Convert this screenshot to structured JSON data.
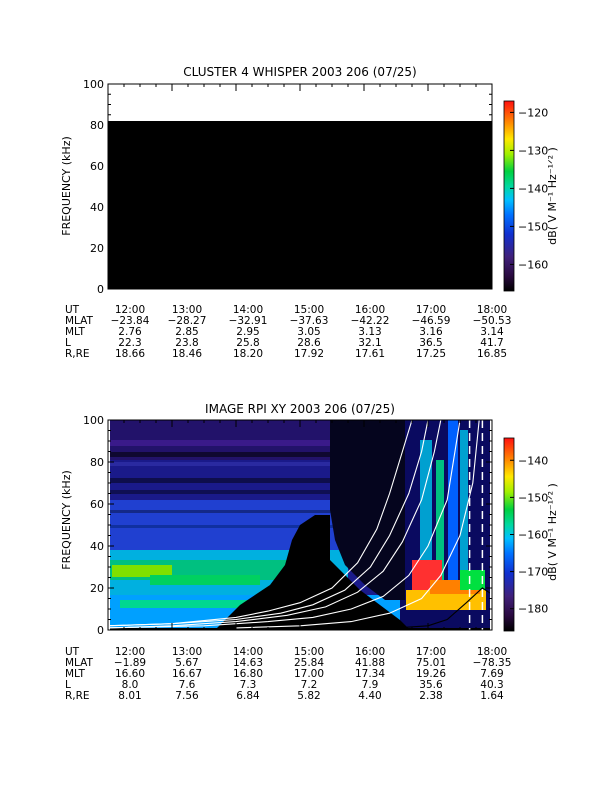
{
  "chart_data": [
    {
      "type": "heatmap",
      "title": "CLUSTER 4 WHISPER 2003 206 (07/25)",
      "ylabel": "FREQUENCY (kHz)",
      "ylim": [
        0,
        100
      ],
      "yticks": [
        "0",
        "20",
        "40",
        "60",
        "80",
        "100"
      ],
      "data_region": {
        "freq_max_khz": 80,
        "value": "background"
      },
      "colorbar": {
        "label": "dB( V M⁻¹ Hz⁻¹ᐟ² )",
        "range": [
          -167,
          -117
        ],
        "ticks": [
          "-120",
          "-130",
          "-140",
          "-150",
          "-160"
        ]
      },
      "ephemeris": {
        "labels": [
          "UT",
          "MLAT",
          "MLT",
          "L",
          "R,RE"
        ],
        "columns": [
          [
            "12:00",
            "-23.84",
            "2.76",
            "22.3",
            "18.66"
          ],
          [
            "13:00",
            "-28.27",
            "2.85",
            "23.8",
            "18.46"
          ],
          [
            "14:00",
            "-32.91",
            "2.95",
            "25.8",
            "18.20"
          ],
          [
            "15:00",
            "-37.63",
            "3.05",
            "28.6",
            "17.92"
          ],
          [
            "16:00",
            "-42.22",
            "3.13",
            "32.1",
            "17.61"
          ],
          [
            "17:00",
            "-46.59",
            "3.16",
            "36.5",
            "17.25"
          ],
          [
            "18:00",
            "-50.53",
            "3.14",
            "41.7",
            "16.85"
          ]
        ]
      }
    },
    {
      "type": "heatmap",
      "title": "IMAGE RPI XY 2003 206 (07/25)",
      "ylabel": "FREQUENCY (kHz)",
      "ylim": [
        0,
        100
      ],
      "yticks": [
        "0",
        "20",
        "40",
        "60",
        "80",
        "100"
      ],
      "colorbar": {
        "label": "dB( V M⁻¹ Hz⁻¹ᐟ² )",
        "range": [
          -186,
          -134
        ],
        "ticks": [
          "-140",
          "-150",
          "-160",
          "-170",
          "-180"
        ]
      },
      "ephemeris": {
        "labels": [
          "UT",
          "MLAT",
          "MLT",
          "L",
          "R,RE"
        ],
        "columns": [
          [
            "12:00",
            "-1.89",
            "16.60",
            "8.0",
            "8.01"
          ],
          [
            "13:00",
            "5.67",
            "16.67",
            "7.6",
            "7.56"
          ],
          [
            "14:00",
            "14.63",
            "16.80",
            "7.3",
            "6.84"
          ],
          [
            "15:00",
            "25.84",
            "17.00",
            "7.2",
            "5.82"
          ],
          [
            "16:00",
            "41.88",
            "17.34",
            "7.9",
            "4.40"
          ],
          [
            "17:00",
            "75.01",
            "19.26",
            "35.6",
            "2.38"
          ],
          [
            "18:00",
            "-78.35",
            "7.69",
            "40.3",
            "1.64"
          ]
        ]
      },
      "overlay_curves": [
        {
          "color": "#ffffff",
          "points": [
            [
              12.0,
              2
            ],
            [
              13.0,
              3
            ],
            [
              14.0,
              6
            ],
            [
              14.5,
              9
            ],
            [
              15.0,
              13
            ],
            [
              15.5,
              20
            ],
            [
              15.9,
              32
            ],
            [
              16.2,
              48
            ],
            [
              16.4,
              65
            ],
            [
              16.6,
              85
            ],
            [
              16.75,
              100
            ]
          ]
        },
        {
          "color": "#ffffff",
          "points": [
            [
              12.0,
              2
            ],
            [
              13.0,
              3
            ],
            [
              14.0,
              5
            ],
            [
              14.7,
              8
            ],
            [
              15.2,
              12
            ],
            [
              15.7,
              19
            ],
            [
              16.1,
              30
            ],
            [
              16.4,
              45
            ],
            [
              16.7,
              65
            ],
            [
              16.9,
              85
            ],
            [
              17.0,
              100
            ]
          ]
        },
        {
          "color": "#ffffff",
          "points": [
            [
              12.0,
              1
            ],
            [
              13.0,
              2
            ],
            [
              14.0,
              4
            ],
            [
              14.8,
              7
            ],
            [
              15.4,
              11
            ],
            [
              15.9,
              18
            ],
            [
              16.3,
              28
            ],
            [
              16.6,
              42
            ],
            [
              16.9,
              62
            ],
            [
              17.1,
              85
            ],
            [
              17.2,
              100
            ]
          ]
        },
        {
          "color": "#ffffff",
          "points": [
            [
              12.0,
              1
            ],
            [
              13.5,
              2
            ],
            [
              14.5,
              4
            ],
            [
              15.2,
              6
            ],
            [
              15.8,
              10
            ],
            [
              16.3,
              16
            ],
            [
              16.7,
              26
            ],
            [
              17.0,
              40
            ],
            [
              17.3,
              62
            ],
            [
              17.5,
              100
            ]
          ]
        },
        {
          "color": "#ffffff",
          "points": [
            [
              14.0,
              1
            ],
            [
              15.0,
              2
            ],
            [
              15.8,
              4
            ],
            [
              16.4,
              8
            ],
            [
              16.9,
              15
            ],
            [
              17.2,
              26
            ],
            [
              17.5,
              45
            ],
            [
              17.7,
              70
            ],
            [
              17.8,
              100
            ]
          ]
        },
        {
          "color": "#000000",
          "points": [
            [
              15.5,
              0
            ],
            [
              16.5,
              1
            ],
            [
              17.0,
              2
            ],
            [
              17.3,
              5
            ],
            [
              17.6,
              13
            ],
            [
              17.85,
              20
            ],
            [
              18.0,
              17
            ],
            [
              18.1,
              10
            ]
          ]
        }
      ],
      "dashed_verticals_ut": [
        17.65,
        17.85
      ]
    }
  ]
}
